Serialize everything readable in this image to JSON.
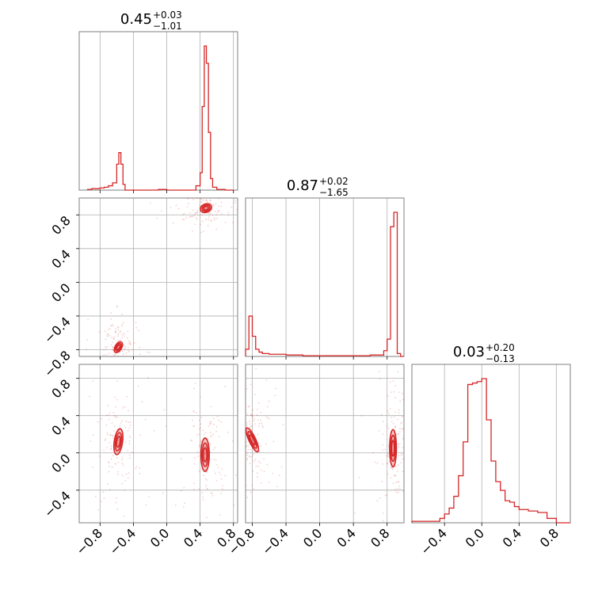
{
  "chart_data": {
    "type": "corner",
    "color": "#d62728",
    "grid": true,
    "tick_values": {
      "p1": [
        -0.8,
        -0.4,
        0.0,
        0.4,
        0.8
      ],
      "p2": [
        -0.8,
        -0.4,
        0.0,
        0.4,
        0.8
      ],
      "p3": [
        -0.4,
        0.0,
        0.4,
        0.8
      ]
    },
    "tick_labels": {
      "p1": [
        "−0.8",
        "−0.4",
        "0.0",
        "0.4",
        "0.8"
      ],
      "p2": [
        "−0.8",
        "−0.4",
        "0.0",
        "0.4",
        "0.8"
      ],
      "p3": [
        "−0.4",
        "0.0",
        "0.4",
        "0.8"
      ]
    },
    "ranges": {
      "p1": [
        -1.05,
        0.85
      ],
      "p2": [
        -0.88,
        1.0
      ],
      "p3": [
        -0.75,
        0.95
      ]
    },
    "titles": [
      {
        "median": "0.45",
        "plus": "+0.03",
        "minus": "−1.01"
      },
      {
        "median": "0.87",
        "plus": "+0.02",
        "minus": "−1.65"
      },
      {
        "median": "0.03",
        "plus": "+0.20",
        "minus": "−0.13"
      }
    ],
    "histograms": {
      "p1": {
        "bins": [
          -0.95,
          -0.9,
          -0.85,
          -0.8,
          -0.75,
          -0.7,
          -0.65,
          -0.6,
          -0.575,
          -0.55,
          -0.525,
          -0.5,
          -0.4,
          -0.2,
          -0.1,
          0.0,
          0.1,
          0.2,
          0.3,
          0.35,
          0.4,
          0.425,
          0.45,
          0.475,
          0.5,
          0.525,
          0.55,
          0.6,
          0.7,
          0.8
        ],
        "counts": [
          0.005,
          0.01,
          0.01,
          0.015,
          0.02,
          0.03,
          0.05,
          0.18,
          0.26,
          0.18,
          0.04,
          0.0,
          0.0,
          0.0,
          0.005,
          0.0,
          0.0,
          0.0,
          0.0,
          0.03,
          0.12,
          0.58,
          1.0,
          0.88,
          0.4,
          0.08,
          0.02,
          0.005,
          0.0
        ]
      },
      "p2": {
        "bins": [
          -0.88,
          -0.84,
          -0.8,
          -0.76,
          -0.72,
          -0.68,
          -0.6,
          -0.4,
          -0.2,
          0.0,
          0.2,
          0.4,
          0.6,
          0.7,
          0.76,
          0.8,
          0.84,
          0.88,
          0.92,
          0.96,
          1.0
        ],
        "counts": [
          0.05,
          0.28,
          0.14,
          0.05,
          0.03,
          0.02,
          0.015,
          0.01,
          0.005,
          0.005,
          0.005,
          0.005,
          0.01,
          0.01,
          0.04,
          0.12,
          0.9,
          1.0,
          0.02,
          0.0
        ]
      },
      "p3": {
        "bins": [
          -0.75,
          -0.45,
          -0.4,
          -0.35,
          -0.3,
          -0.25,
          -0.2,
          -0.15,
          -0.1,
          -0.05,
          0.0,
          0.05,
          0.1,
          0.15,
          0.2,
          0.25,
          0.3,
          0.35,
          0.4,
          0.5,
          0.6,
          0.7,
          0.8,
          0.95
        ],
        "counts": [
          0.01,
          0.03,
          0.06,
          0.1,
          0.18,
          0.32,
          0.55,
          0.94,
          0.95,
          0.96,
          0.98,
          0.7,
          0.42,
          0.28,
          0.22,
          0.15,
          0.14,
          0.11,
          0.09,
          0.08,
          0.07,
          0.03,
          0.0
        ]
      }
    },
    "clusters": {
      "p2_vs_p1": [
        {
          "cx": 0.47,
          "cy": 0.88,
          "rx": 0.07,
          "ry": 0.05,
          "rot": -20
        },
        {
          "cx": -0.58,
          "cy": -0.77,
          "rx": 0.04,
          "ry": 0.07,
          "rot": 30
        }
      ],
      "p3_vs_p1": [
        {
          "cx": -0.58,
          "cy": 0.12,
          "rx": 0.05,
          "ry": 0.14,
          "rot": 8
        },
        {
          "cx": 0.46,
          "cy": -0.02,
          "rx": 0.05,
          "ry": 0.18,
          "rot": 0
        }
      ],
      "p3_vs_p2": [
        {
          "cx": -0.8,
          "cy": 0.14,
          "rx": 0.04,
          "ry": 0.14,
          "rot": -25
        },
        {
          "cx": 0.87,
          "cy": 0.05,
          "rx": 0.04,
          "ry": 0.2,
          "rot": 0
        }
      ]
    }
  }
}
